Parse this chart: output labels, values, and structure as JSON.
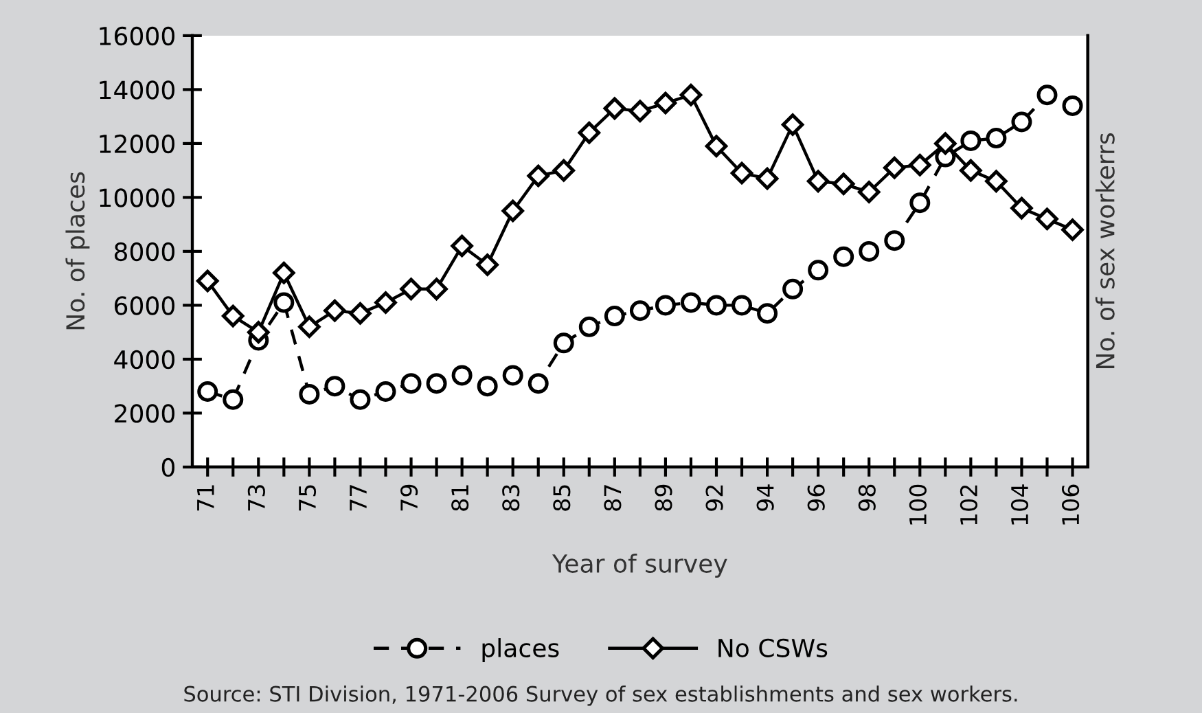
{
  "chart_data": {
    "type": "line",
    "xlabel": "Year of survey",
    "ylabel": "No. of places",
    "y2label": "No. of sex workerrs",
    "annotations": [
      "Source: STI Division, 1971-2006 Survey of sex establishments and sex workers."
    ],
    "categories": [
      "71",
      null,
      "73",
      null,
      "75",
      null,
      "77",
      null,
      "79",
      null,
      "81",
      null,
      "83",
      null,
      "85",
      null,
      "87",
      null,
      "89",
      null,
      "92",
      null,
      "94",
      null,
      "96",
      null,
      "98",
      null,
      "100",
      null,
      "102",
      null,
      "104",
      null,
      "106"
    ],
    "series": [
      {
        "name": "places",
        "color": "#000000",
        "marker": "circle",
        "line_style": "dashed",
        "values": [
          2800,
          2500,
          4700,
          6100,
          2700,
          3000,
          2500,
          2800,
          3100,
          3100,
          3400,
          3000,
          3400,
          3100,
          4600,
          5200,
          5600,
          5800,
          6000,
          6100,
          6000,
          6000,
          5700,
          6600,
          7300,
          7800,
          8000,
          8400,
          9800,
          11500,
          12100,
          12200,
          12800,
          13800,
          13400
        ]
      },
      {
        "name": "No CSWs",
        "color": "#000000",
        "marker": "diamond",
        "line_style": "solid",
        "values": [
          6900,
          5600,
          5000,
          7200,
          5200,
          5800,
          5700,
          6100,
          6600,
          6600,
          8200,
          7500,
          9500,
          10800,
          11000,
          12400,
          13300,
          13200,
          13500,
          13800,
          11900,
          10900,
          10700,
          12700,
          10600,
          10500,
          10200,
          11100,
          11200,
          12000,
          11000,
          10600,
          9600,
          9200,
          8800
        ]
      }
    ],
    "ylim": [
      0,
      16000
    ],
    "yticks": [
      0,
      2000,
      4000,
      6000,
      8000,
      10000,
      12000,
      14000,
      16000
    ],
    "tick_labels": [
      "x",
      "y"
    ],
    "grid": false,
    "legend": "bottom"
  }
}
